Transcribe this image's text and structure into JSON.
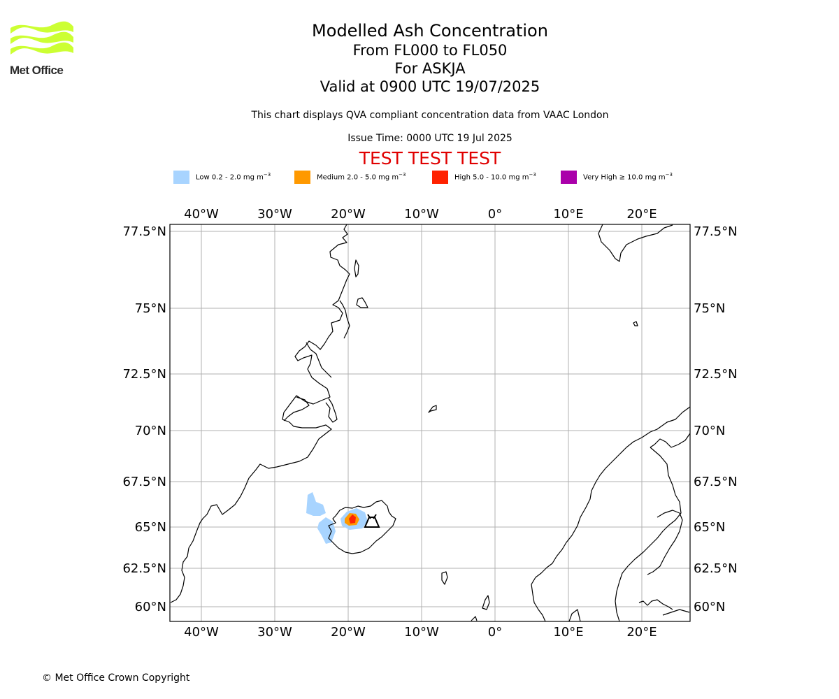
{
  "logo": {
    "text": "Met Office",
    "icon": "met-office-wave-logo",
    "color": "#ccff33"
  },
  "title": {
    "line1": "Modelled Ash Concentration",
    "line2": "From FL000 to FL050",
    "line3": "For ASKJA",
    "line4": "Valid at 0900 UTC 19/07/2025"
  },
  "subtitle": "This chart displays QVA compliant concentration data from VAAC London",
  "issue_time": "Issue Time: 0000 UTC 19 Jul 2025",
  "test_banner": "TEST TEST TEST",
  "legend": [
    {
      "label": "Low 0.2 - 2.0 mg m",
      "color": "#a8d4ff"
    },
    {
      "label": "Medium 2.0 - 5.0 mg m",
      "color": "#ff9900"
    },
    {
      "label": "High 5.0 - 10.0 mg m",
      "color": "#ff2200"
    },
    {
      "label": "Very High  ≥  10.0 mg m",
      "color": "#aa00aa"
    }
  ],
  "legend_unit_exponent": "−3",
  "map": {
    "lon_ticks": [
      "40°W",
      "30°W",
      "20°W",
      "10°W",
      "0°",
      "10°E",
      "20°E"
    ],
    "lat_ticks": [
      "77.5°N",
      "75°N",
      "72.5°N",
      "70°N",
      "67.5°N",
      "65°N",
      "62.5°N",
      "60°N"
    ],
    "volcano": "ASKJA",
    "volcano_icon": "volcano-icon"
  },
  "copyright": "© Met Office Crown Copyright"
}
